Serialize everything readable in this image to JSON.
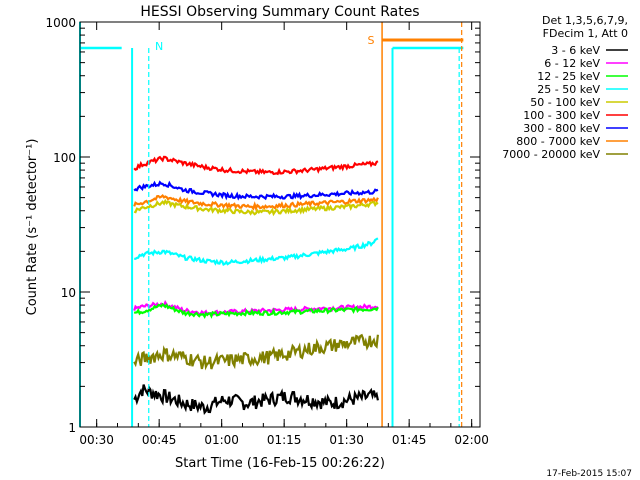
{
  "chart_data": {
    "type": "line",
    "title": "HESSI Observing Summary Count Rates",
    "xlabel": "Start Time (16-Feb-15 00:26:22)",
    "ylabel": "Count Rate (s⁻¹ detector⁻¹)",
    "yscale": "log",
    "ylim": [
      1,
      1000
    ],
    "xlim_minutes_after_0026": [
      0,
      96
    ],
    "x_tick_labels": [
      "00:30",
      "00:45",
      "01:00",
      "01:15",
      "01:30",
      "01:45",
      "02:00"
    ],
    "y_tick_labels": [
      "1",
      "10",
      "100",
      "1000"
    ],
    "legend_header": [
      "Det 1,3,5,6,7,9,",
      "FDecim 1, Att 0"
    ],
    "legend_position": "right",
    "series": [
      {
        "name": "3 - 6 keV",
        "color": "#000000",
        "x": [
          13,
          15,
          20,
          25,
          30,
          35,
          40,
          45,
          50,
          55,
          60,
          65,
          70,
          71.5
        ],
        "y": [
          1.6,
          1.9,
          1.7,
          1.5,
          1.4,
          1.6,
          1.5,
          1.6,
          1.7,
          1.6,
          1.5,
          1.6,
          1.7,
          1.6
        ]
      },
      {
        "name": "6 - 12 keV",
        "color": "#ff00ff",
        "x": [
          13,
          15,
          20,
          25,
          30,
          35,
          40,
          45,
          50,
          55,
          60,
          65,
          70,
          71.5
        ],
        "y": [
          7.5,
          7.8,
          8.2,
          7.3,
          7.0,
          7.1,
          7.2,
          7.3,
          7.4,
          7.5,
          7.6,
          7.7,
          7.8,
          7.9
        ]
      },
      {
        "name": "12 - 25 keV",
        "color": "#00ff00",
        "x": [
          13,
          15,
          20,
          25,
          30,
          35,
          40,
          45,
          50,
          55,
          60,
          65,
          70,
          71.5
        ],
        "y": [
          7.0,
          7.2,
          8.0,
          7.0,
          6.8,
          6.9,
          7.0,
          7.0,
          7.1,
          7.2,
          7.3,
          7.4,
          7.5,
          7.6
        ]
      },
      {
        "name": "25 - 50 keV",
        "color": "#00ffff",
        "x": [
          13,
          15,
          20,
          25,
          30,
          35,
          40,
          45,
          50,
          55,
          60,
          65,
          70,
          71.5
        ],
        "y": [
          18,
          19,
          20,
          18,
          17,
          16.5,
          17,
          17.5,
          18,
          19,
          20,
          21,
          23,
          25
        ]
      },
      {
        "name": "50 - 100 keV",
        "color": "#cccc00",
        "x": [
          13,
          15,
          20,
          25,
          30,
          35,
          40,
          45,
          50,
          55,
          60,
          65,
          70,
          71.5
        ],
        "y": [
          40,
          42,
          46,
          43,
          41,
          40,
          39,
          39,
          40,
          41,
          42,
          43,
          45,
          46
        ]
      },
      {
        "name": "100 - 300 keV",
        "color": "#ff0000",
        "x": [
          13,
          15,
          20,
          25,
          30,
          35,
          40,
          45,
          50,
          55,
          60,
          65,
          70,
          71.5
        ],
        "y": [
          82,
          88,
          98,
          90,
          84,
          80,
          78,
          77,
          78,
          80,
          83,
          86,
          89,
          91
        ]
      },
      {
        "name": "300 - 800 keV",
        "color": "#0000ff",
        "x": [
          13,
          15,
          20,
          25,
          30,
          35,
          40,
          45,
          50,
          55,
          60,
          65,
          70,
          71.5
        ],
        "y": [
          58,
          60,
          64,
          57,
          54,
          52,
          51,
          51,
          51,
          52,
          53,
          54,
          55,
          56
        ]
      },
      {
        "name": "800 - 7000 keV",
        "color": "#ff8000",
        "x": [
          13,
          15,
          20,
          25,
          30,
          35,
          40,
          45,
          50,
          55,
          60,
          65,
          70,
          71.5
        ],
        "y": [
          44,
          46,
          51,
          47,
          45,
          44,
          43,
          43,
          44,
          45,
          46,
          47,
          48,
          49
        ]
      },
      {
        "name": "7000 - 20000 keV",
        "color": "#808000",
        "x": [
          13,
          15,
          20,
          25,
          30,
          35,
          40,
          45,
          50,
          55,
          60,
          65,
          70,
          71.5
        ],
        "y": [
          3.0,
          3.2,
          3.5,
          3.3,
          3.0,
          3.1,
          3.2,
          3.3,
          3.5,
          3.8,
          4.0,
          4.2,
          4.4,
          4.5
        ]
      }
    ],
    "annotations": [
      {
        "text": "N",
        "color": "#00ffff"
      },
      {
        "text": "S",
        "color": "#ff8000"
      }
    ],
    "timestamp": "17-Feb-2015 15:07"
  }
}
